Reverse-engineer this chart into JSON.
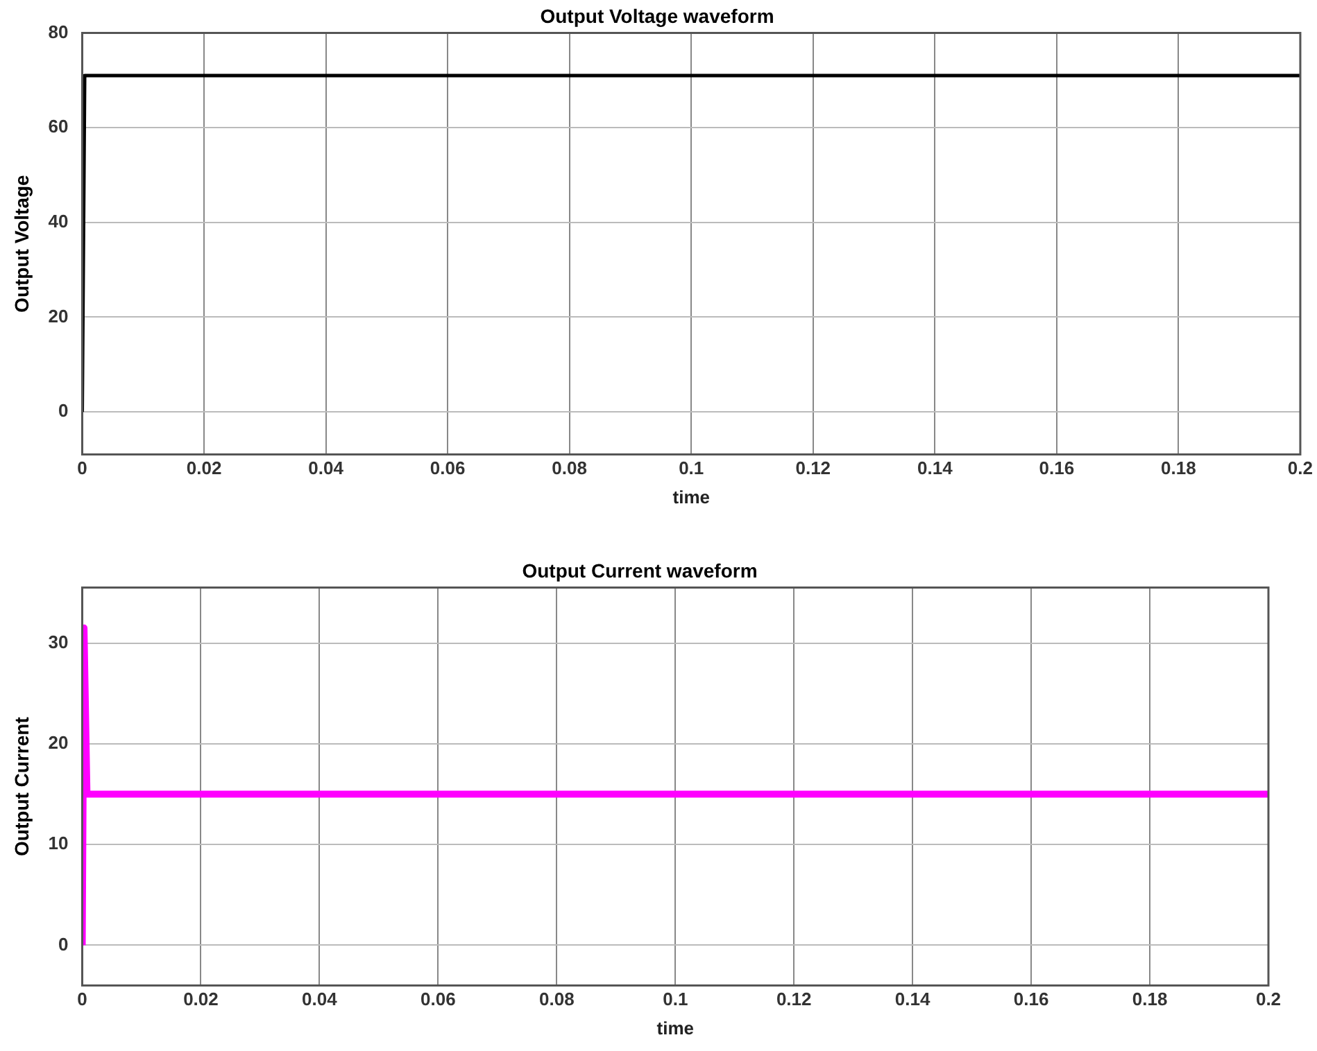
{
  "chart_data": [
    {
      "type": "line",
      "title": "Output Voltage waveform",
      "xlabel": "time",
      "ylabel": "Output Voltage",
      "x": [
        0,
        0.0004,
        0.2
      ],
      "series": [
        {
          "color": "#000000",
          "values": [
            0,
            71,
            71
          ]
        }
      ],
      "xlim": [
        0,
        0.2
      ],
      "xticks": [
        0,
        0.02,
        0.04,
        0.06,
        0.08,
        0.1,
        0.12,
        0.14,
        0.16,
        0.18,
        0.2
      ],
      "ylim": [
        -9,
        80
      ],
      "yticks": [
        0,
        20,
        40,
        60,
        80
      ],
      "grid": true,
      "marker": "none",
      "line_style": "solid"
    },
    {
      "type": "line",
      "title": "Output Current waveform",
      "xlabel": "time",
      "ylabel": "Output Current",
      "x": [
        0,
        0.0003,
        0.0008,
        0.2
      ],
      "series": [
        {
          "color": "#ff00ff",
          "values": [
            0,
            31.5,
            15,
            15
          ]
        }
      ],
      "xlim": [
        0,
        0.2
      ],
      "xticks": [
        0,
        0.02,
        0.04,
        0.06,
        0.08,
        0.1,
        0.12,
        0.14,
        0.16,
        0.18,
        0.2
      ],
      "ylim": [
        -4,
        35.5
      ],
      "yticks": [
        0,
        10,
        20,
        30
      ],
      "grid": true,
      "marker": "none",
      "line_style": "solid"
    }
  ]
}
